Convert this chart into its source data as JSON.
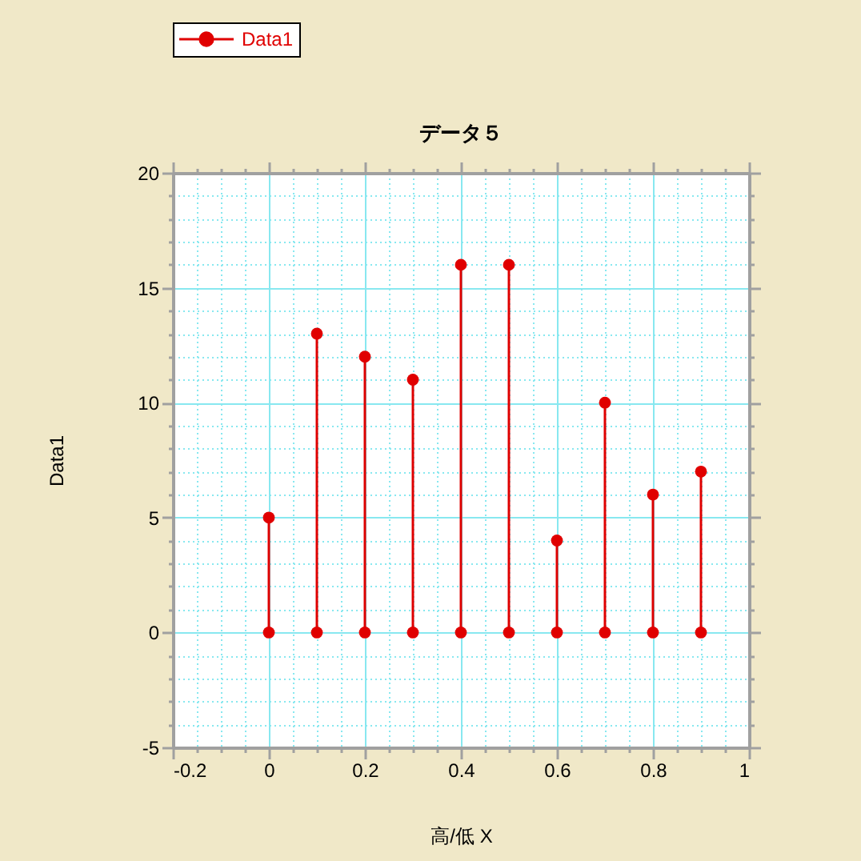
{
  "chart_data": {
    "type": "lollipop",
    "title": "データ５",
    "xlabel": "高/低 X",
    "ylabel": "Data1",
    "x": [
      0,
      0.1,
      0.2,
      0.3,
      0.4,
      0.5,
      0.6,
      0.7,
      0.8,
      0.9
    ],
    "series": [
      {
        "name": "Data1",
        "color": "#e00000",
        "values": [
          5,
          13,
          12,
          11,
          16,
          16,
          4,
          10,
          6,
          7
        ]
      },
      {
        "type": "scatter",
        "color": "#e00000",
        "values": [
          0,
          0,
          0,
          0,
          0,
          0,
          0,
          0,
          0,
          0
        ]
      }
    ],
    "xlim": [
      -0.2,
      1
    ],
    "ylim": [
      -5,
      20
    ],
    "xticks": [
      -0.2,
      {
        "value": -0.15,
        "label": null
      },
      {
        "value": -0.1,
        "label": null
      },
      {
        "value": -0.05,
        "label": null
      },
      0,
      {
        "value": 0.05,
        "label": null
      },
      {
        "value": 0.1,
        "label": null
      },
      {
        "value": 0.15,
        "label": null
      },
      0.2,
      {
        "value": 0.25,
        "label": null
      },
      {
        "value": 0.3,
        "label": null
      },
      {
        "value": 0.35,
        "label": null
      },
      0.4,
      {
        "value": 0.45,
        "label": null
      },
      {
        "value": 0.5,
        "label": null
      },
      {
        "value": 0.55,
        "label": null
      },
      0.6,
      {
        "value": 0.65,
        "label": null
      },
      {
        "value": 0.7,
        "label": null
      },
      {
        "value": 0.75,
        "label": null
      },
      0.8,
      {
        "value": 0.85,
        "label": null
      },
      {
        "value": 0.9,
        "label": null
      },
      {
        "value": 0.95,
        "label": null
      },
      1
    ],
    "yticks": [
      -5,
      {
        "value": -4,
        "label": null
      },
      {
        "value": -3,
        "label": null
      },
      {
        "value": -2,
        "label": null
      },
      {
        "value": -1,
        "label": null
      },
      0,
      {
        "value": 1,
        "label": null
      },
      {
        "value": 2,
        "label": null
      },
      {
        "value": 3,
        "label": null
      },
      {
        "value": 4,
        "label": null
      },
      5,
      {
        "value": 6,
        "label": null
      },
      {
        "value": 7,
        "label": null
      },
      {
        "value": 8,
        "label": null
      },
      {
        "value": 9,
        "label": null
      },
      10,
      {
        "value": 11,
        "label": null
      },
      {
        "value": 12,
        "label": null
      },
      {
        "value": 13,
        "label": null
      },
      {
        "value": 14,
        "label": null
      },
      15,
      {
        "value": 16,
        "label": null
      },
      {
        "value": 17,
        "label": null
      },
      {
        "value": 18,
        "label": null
      },
      {
        "value": 19,
        "label": null
      },
      20
    ],
    "grid": true,
    "legend": "top left",
    "marker": "circle"
  }
}
